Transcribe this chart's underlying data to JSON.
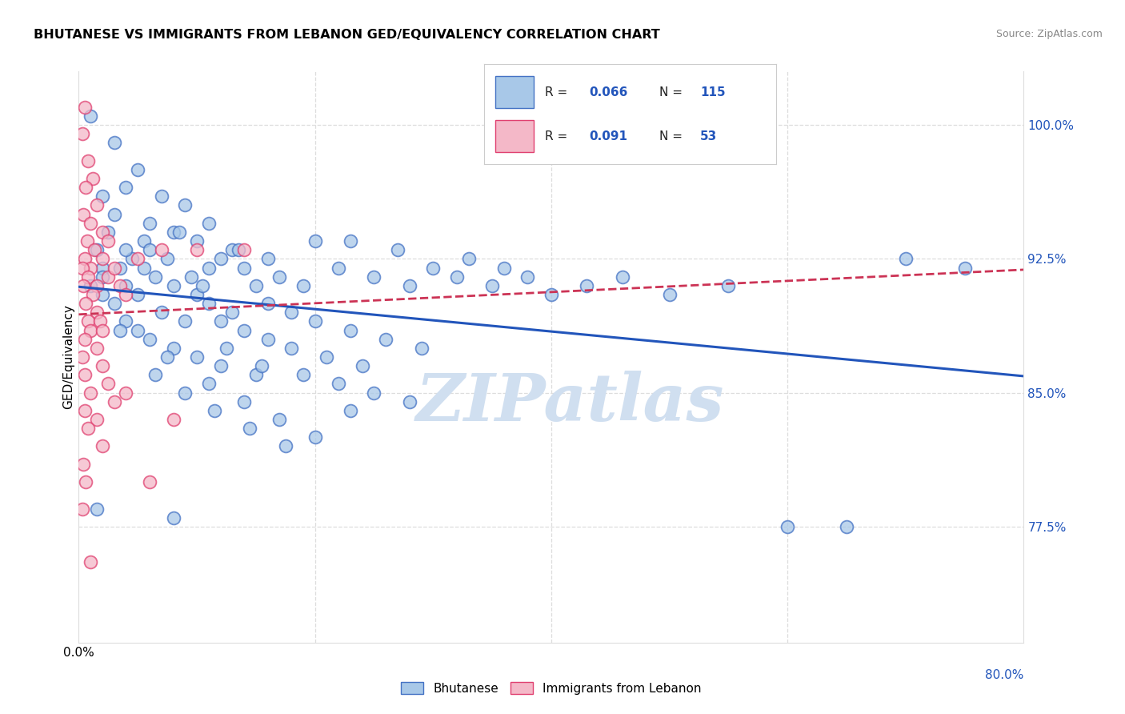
{
  "title": "BHUTANESE VS IMMIGRANTS FROM LEBANON GED/EQUIVALENCY CORRELATION CHART",
  "source": "Source: ZipAtlas.com",
  "ylabel": "GED/Equivalency",
  "xmin": 0.0,
  "xmax": 80.0,
  "ymin": 71.0,
  "ymax": 103.0,
  "blue_scatter_color": "#a8c8e8",
  "blue_edge_color": "#4472c4",
  "pink_scatter_color": "#f4b8c8",
  "pink_edge_color": "#e04070",
  "blue_line_color": "#2255bb",
  "pink_line_color": "#cc3355",
  "watermark_color": "#d0dff0",
  "grid_color": "#dddddd",
  "blue_scatter": [
    [
      1.0,
      100.5
    ],
    [
      3.0,
      99.0
    ],
    [
      5.0,
      97.5
    ],
    [
      2.0,
      96.0
    ],
    [
      4.0,
      96.5
    ],
    [
      7.0,
      96.0
    ],
    [
      9.0,
      95.5
    ],
    [
      3.0,
      95.0
    ],
    [
      6.0,
      94.5
    ],
    [
      8.0,
      94.0
    ],
    [
      11.0,
      94.5
    ],
    [
      2.5,
      94.0
    ],
    [
      5.5,
      93.5
    ],
    [
      10.0,
      93.5
    ],
    [
      13.0,
      93.0
    ],
    [
      1.5,
      93.0
    ],
    [
      4.5,
      92.5
    ],
    [
      7.5,
      92.5
    ],
    [
      12.0,
      92.5
    ],
    [
      2.0,
      92.0
    ],
    [
      3.5,
      92.0
    ],
    [
      6.5,
      91.5
    ],
    [
      9.5,
      91.5
    ],
    [
      1.0,
      91.0
    ],
    [
      4.0,
      91.0
    ],
    [
      8.0,
      91.0
    ],
    [
      14.0,
      92.0
    ],
    [
      2.0,
      90.5
    ],
    [
      5.0,
      90.5
    ],
    [
      10.0,
      90.5
    ],
    [
      15.0,
      91.0
    ],
    [
      3.0,
      90.0
    ],
    [
      7.0,
      89.5
    ],
    [
      11.0,
      90.0
    ],
    [
      17.0,
      91.5
    ],
    [
      4.0,
      89.0
    ],
    [
      9.0,
      89.0
    ],
    [
      13.0,
      89.5
    ],
    [
      19.0,
      91.0
    ],
    [
      5.0,
      88.5
    ],
    [
      12.0,
      89.0
    ],
    [
      16.0,
      90.0
    ],
    [
      22.0,
      92.0
    ],
    [
      6.0,
      88.0
    ],
    [
      14.0,
      88.5
    ],
    [
      18.0,
      89.5
    ],
    [
      25.0,
      91.5
    ],
    [
      8.0,
      87.5
    ],
    [
      16.0,
      88.0
    ],
    [
      20.0,
      89.0
    ],
    [
      28.0,
      91.0
    ],
    [
      10.0,
      87.0
    ],
    [
      18.0,
      87.5
    ],
    [
      23.0,
      88.5
    ],
    [
      30.0,
      92.0
    ],
    [
      12.0,
      86.5
    ],
    [
      21.0,
      87.0
    ],
    [
      26.0,
      88.0
    ],
    [
      33.0,
      92.5
    ],
    [
      15.0,
      86.0
    ],
    [
      24.0,
      86.5
    ],
    [
      29.0,
      87.5
    ],
    [
      36.0,
      92.0
    ],
    [
      2.0,
      91.5
    ],
    [
      6.0,
      93.0
    ],
    [
      11.0,
      92.0
    ],
    [
      20.0,
      93.5
    ],
    [
      4.0,
      93.0
    ],
    [
      8.5,
      94.0
    ],
    [
      13.5,
      93.0
    ],
    [
      23.0,
      93.5
    ],
    [
      5.5,
      92.0
    ],
    [
      10.5,
      91.0
    ],
    [
      16.0,
      92.5
    ],
    [
      27.0,
      93.0
    ],
    [
      3.5,
      88.5
    ],
    [
      7.5,
      87.0
    ],
    [
      12.5,
      87.5
    ],
    [
      32.0,
      91.5
    ],
    [
      6.5,
      86.0
    ],
    [
      11.0,
      85.5
    ],
    [
      15.5,
      86.5
    ],
    [
      35.0,
      91.0
    ],
    [
      9.0,
      85.0
    ],
    [
      14.0,
      84.5
    ],
    [
      19.0,
      86.0
    ],
    [
      38.0,
      91.5
    ],
    [
      11.5,
      84.0
    ],
    [
      17.0,
      83.5
    ],
    [
      22.0,
      85.5
    ],
    [
      40.0,
      90.5
    ],
    [
      14.5,
      83.0
    ],
    [
      20.0,
      82.5
    ],
    [
      25.0,
      85.0
    ],
    [
      43.0,
      91.0
    ],
    [
      17.5,
      82.0
    ],
    [
      23.0,
      84.0
    ],
    [
      28.0,
      84.5
    ],
    [
      46.0,
      91.5
    ],
    [
      1.5,
      78.5
    ],
    [
      8.0,
      78.0
    ],
    [
      50.0,
      90.5
    ],
    [
      55.0,
      91.0
    ],
    [
      60.0,
      77.5
    ],
    [
      65.0,
      77.5
    ],
    [
      70.0,
      92.5
    ],
    [
      75.0,
      92.0
    ]
  ],
  "pink_scatter": [
    [
      0.5,
      101.0
    ],
    [
      0.3,
      99.5
    ],
    [
      0.8,
      98.0
    ],
    [
      1.2,
      97.0
    ],
    [
      0.6,
      96.5
    ],
    [
      1.5,
      95.5
    ],
    [
      0.4,
      95.0
    ],
    [
      1.0,
      94.5
    ],
    [
      2.0,
      94.0
    ],
    [
      0.7,
      93.5
    ],
    [
      1.3,
      93.0
    ],
    [
      2.5,
      93.5
    ],
    [
      0.5,
      92.5
    ],
    [
      1.0,
      92.0
    ],
    [
      2.0,
      92.5
    ],
    [
      0.3,
      92.0
    ],
    [
      0.8,
      91.5
    ],
    [
      1.5,
      91.0
    ],
    [
      0.4,
      91.0
    ],
    [
      1.2,
      90.5
    ],
    [
      2.5,
      91.5
    ],
    [
      0.6,
      90.0
    ],
    [
      1.5,
      89.5
    ],
    [
      3.0,
      92.0
    ],
    [
      0.8,
      89.0
    ],
    [
      1.8,
      89.0
    ],
    [
      3.5,
      91.0
    ],
    [
      1.0,
      88.5
    ],
    [
      2.0,
      88.5
    ],
    [
      4.0,
      90.5
    ],
    [
      0.5,
      88.0
    ],
    [
      1.5,
      87.5
    ],
    [
      5.0,
      92.5
    ],
    [
      0.3,
      87.0
    ],
    [
      2.0,
      86.5
    ],
    [
      7.0,
      93.0
    ],
    [
      0.5,
      86.0
    ],
    [
      2.5,
      85.5
    ],
    [
      10.0,
      93.0
    ],
    [
      1.0,
      85.0
    ],
    [
      3.0,
      84.5
    ],
    [
      14.0,
      93.0
    ],
    [
      0.5,
      84.0
    ],
    [
      1.5,
      83.5
    ],
    [
      0.8,
      83.0
    ],
    [
      2.0,
      82.0
    ],
    [
      0.4,
      81.0
    ],
    [
      0.6,
      80.0
    ],
    [
      0.3,
      78.5
    ],
    [
      1.0,
      75.5
    ],
    [
      4.0,
      85.0
    ],
    [
      6.0,
      80.0
    ],
    [
      8.0,
      83.5
    ]
  ]
}
